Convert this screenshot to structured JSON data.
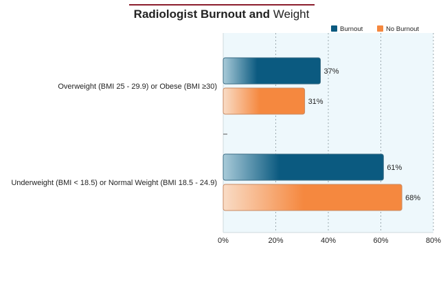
{
  "title": {
    "bold_part": "Radiologist Burnout and",
    "normal_part": " Weight"
  },
  "colors": {
    "burnout": "#0b5a80",
    "no_burnout": "#f5883f",
    "title_rule": "#8a1c2b",
    "plot_bg": "#eef8fc"
  },
  "chart_data": {
    "type": "bar",
    "orientation": "horizontal",
    "categories": [
      "Overweight (BMI 25 - 29.9) or Obese (BMI ≥30)",
      "Underweight (BMI < 18.5) or Normal Weight (BMI 18.5 - 24.9)"
    ],
    "series": [
      {
        "name": "Burnout",
        "values": [
          37,
          61
        ],
        "labels": [
          "37%",
          "61%"
        ]
      },
      {
        "name": "No Burnout",
        "values": [
          31,
          68
        ],
        "labels": [
          "31%",
          "68%"
        ]
      }
    ],
    "xlim": [
      0,
      80
    ],
    "xticks": [
      0,
      20,
      40,
      60,
      80
    ],
    "xtick_labels": [
      "0%",
      "20%",
      "40%",
      "60%",
      "80%"
    ],
    "grid": true,
    "legend_position": "top-right"
  }
}
